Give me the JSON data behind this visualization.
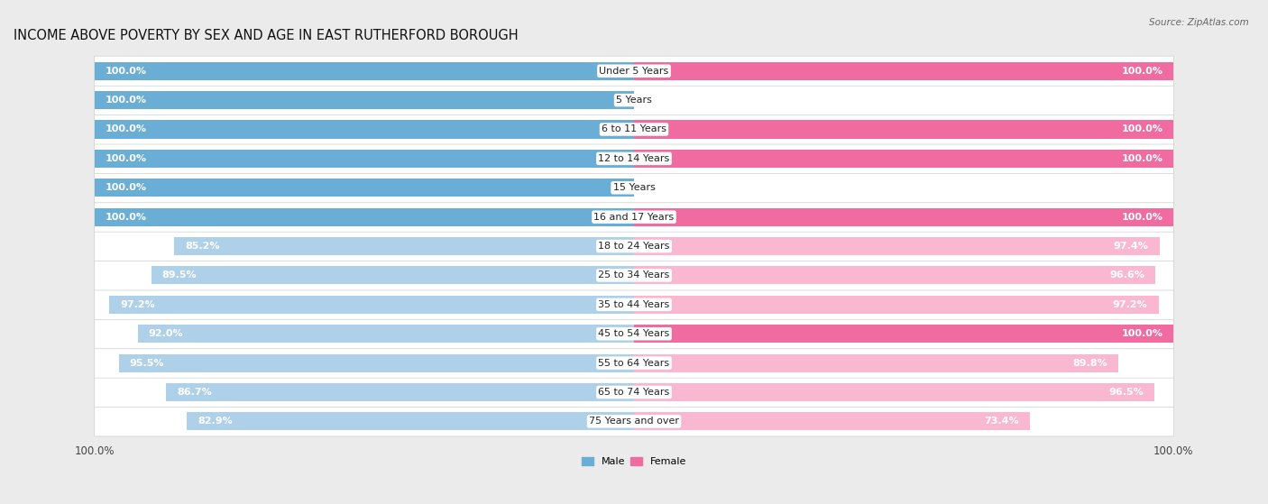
{
  "title": "INCOME ABOVE POVERTY BY SEX AND AGE IN EAST RUTHERFORD BOROUGH",
  "source": "Source: ZipAtlas.com",
  "categories": [
    "Under 5 Years",
    "5 Years",
    "6 to 11 Years",
    "12 to 14 Years",
    "15 Years",
    "16 and 17 Years",
    "18 to 24 Years",
    "25 to 34 Years",
    "35 to 44 Years",
    "45 to 54 Years",
    "55 to 64 Years",
    "65 to 74 Years",
    "75 Years and over"
  ],
  "male": [
    100.0,
    100.0,
    100.0,
    100.0,
    100.0,
    100.0,
    85.2,
    89.5,
    97.2,
    92.0,
    95.5,
    86.7,
    82.9
  ],
  "female": [
    100.0,
    0.0,
    100.0,
    100.0,
    0.0,
    100.0,
    97.4,
    96.6,
    97.2,
    100.0,
    89.8,
    96.5,
    73.4
  ],
  "male_color": "#6AAED6",
  "female_color": "#F06CA0",
  "male_color_light": "#AED0E8",
  "female_color_light": "#F9B8CF",
  "bg_color": "#EBEBEB",
  "row_bg_color": "#F7F7F7",
  "bar_bg_color": "#FFFFFF",
  "title_fontsize": 10.5,
  "label_fontsize": 8.0,
  "value_fontsize": 8.0,
  "tick_fontsize": 8.5,
  "bar_height": 0.62,
  "figsize": [
    14.06,
    5.59
  ]
}
